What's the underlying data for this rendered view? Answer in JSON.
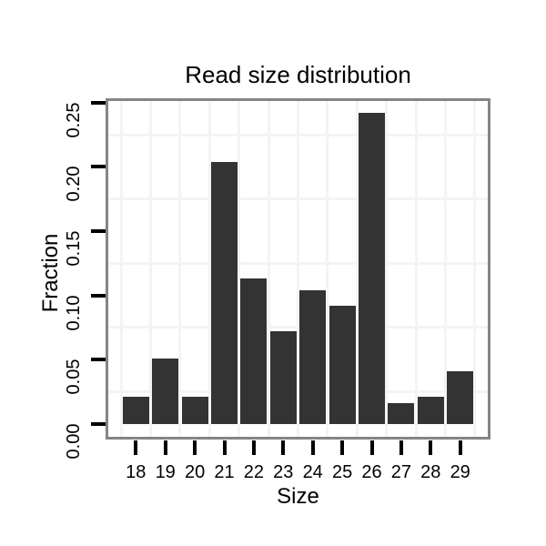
{
  "chart_data": {
    "type": "bar",
    "title": "Read size distribution",
    "xlabel": "Size",
    "ylabel": "Fraction",
    "categories": [
      "18",
      "19",
      "20",
      "21",
      "22",
      "23",
      "24",
      "25",
      "26",
      "27",
      "28",
      "29"
    ],
    "values": [
      0.021,
      0.051,
      0.021,
      0.204,
      0.113,
      0.072,
      0.104,
      0.092,
      0.242,
      0.016,
      0.021,
      0.041
    ],
    "y_ticks": [
      "0.00",
      "0.05",
      "0.10",
      "0.15",
      "0.20",
      "0.25"
    ],
    "ylim": [
      0,
      0.253
    ],
    "y_minor_gridlines": [
      0.025,
      0.075,
      0.125,
      0.175,
      0.225
    ],
    "grid": "light minor gridlines only (between ticks and between categories) on white panel",
    "legend_position": "none",
    "colors": {
      "bar": "#333333",
      "grid": "#f4f4f4",
      "panel_border": "#858585",
      "tick": "#000000",
      "text": "#000000",
      "background": "#ffffff"
    }
  }
}
